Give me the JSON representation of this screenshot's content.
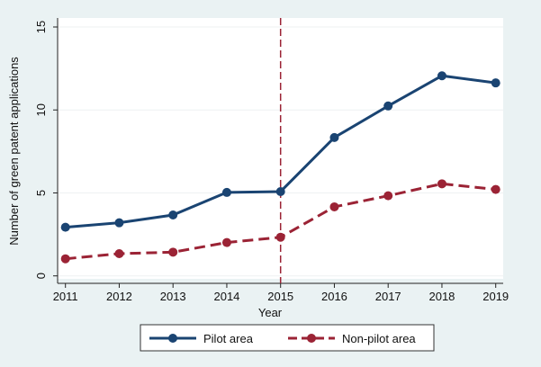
{
  "chart_data": {
    "type": "line",
    "title": "",
    "xlabel": "Year",
    "ylabel": "Number of green patent applications",
    "x": [
      2011,
      2012,
      2013,
      2014,
      2015,
      2016,
      2017,
      2018,
      2019
    ],
    "x_tick_labels": [
      "2011",
      "2012",
      "2013",
      "2014",
      "2015",
      "2016",
      "2017",
      "2018",
      "2019"
    ],
    "y_ticks": [
      0,
      5,
      10,
      15
    ],
    "y_tick_labels": [
      "0",
      "5",
      "10",
      "15"
    ],
    "ylim": [
      0,
      15
    ],
    "xlim": [
      2011,
      2019
    ],
    "grid": true,
    "legend_position": "bottom",
    "reference_line": {
      "x": 2015,
      "color": "#9b2335",
      "style": "dashed"
    },
    "series": [
      {
        "name": "Pilot area",
        "color": "#1a4472",
        "style": "solid",
        "values": [
          2.93,
          3.2,
          3.67,
          5.03,
          5.08,
          8.34,
          10.24,
          12.06,
          11.63
        ]
      },
      {
        "name": "Non-pilot area",
        "color": "#9b2335",
        "style": "dashed",
        "values": [
          1.03,
          1.34,
          1.43,
          2.01,
          2.33,
          4.16,
          4.83,
          5.55,
          5.21
        ]
      }
    ]
  }
}
